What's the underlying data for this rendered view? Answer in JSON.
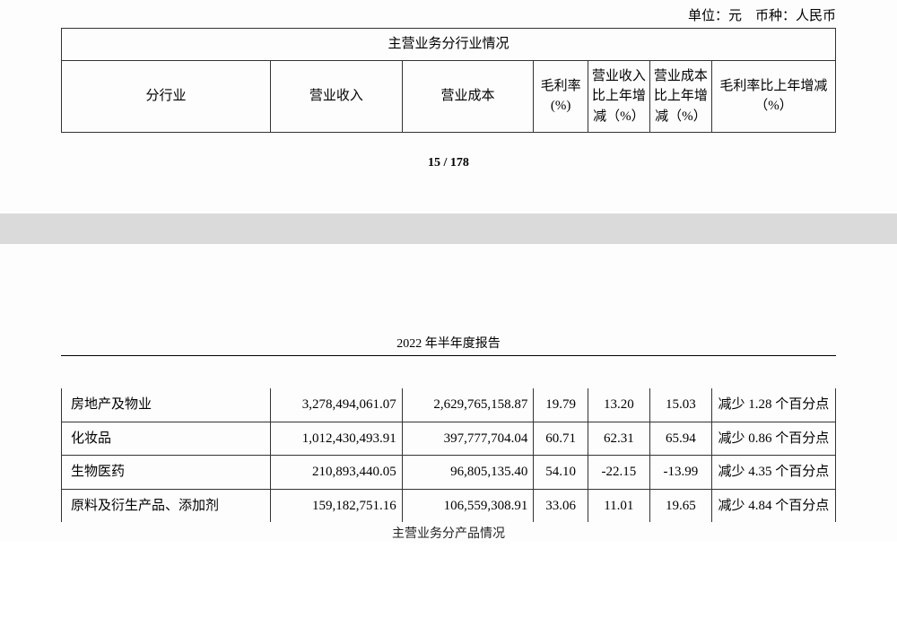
{
  "header": {
    "unit_label": "单位：元　币种：人民币"
  },
  "table1": {
    "title": "主营业务分行业情况",
    "columns": {
      "industry": "分行业",
      "revenue": "营业收入",
      "cost": "营业成本",
      "gross_margin": "毛利率(%)",
      "rev_yoy": "营业收入比上年增减（%）",
      "cost_yoy": "营业成本比上年增减（%）",
      "margin_yoy": "毛利率比上年增减（%）"
    }
  },
  "page_number": "15 / 178",
  "page2": {
    "report_title": "2022 年半年度报告",
    "footer_caption": "主营业务分产品情况",
    "rows": [
      {
        "industry": "房地产及物业",
        "revenue": "3,278,494,061.07",
        "cost": "2,629,765,158.87",
        "gm": "19.79",
        "rev_yoy": "13.20",
        "cost_yoy": "15.03",
        "gm_yoy": "减少 1.28 个百分点"
      },
      {
        "industry": "化妆品",
        "revenue": "1,012,430,493.91",
        "cost": "397,777,704.04",
        "gm": "60.71",
        "rev_yoy": "62.31",
        "cost_yoy": "65.94",
        "gm_yoy": "减少 0.86 个百分点"
      },
      {
        "industry": "生物医药",
        "revenue": "210,893,440.05",
        "cost": "96,805,135.40",
        "gm": "54.10",
        "rev_yoy": "-22.15",
        "cost_yoy": "-13.99",
        "gm_yoy": "减少 4.35 个百分点"
      },
      {
        "industry": "原料及衍生产品、添加剂",
        "revenue": "159,182,751.16",
        "cost": "106,559,308.91",
        "gm": "33.06",
        "rev_yoy": "11.01",
        "cost_yoy": "19.65",
        "gm_yoy": "减少 4.84 个百分点"
      }
    ]
  }
}
